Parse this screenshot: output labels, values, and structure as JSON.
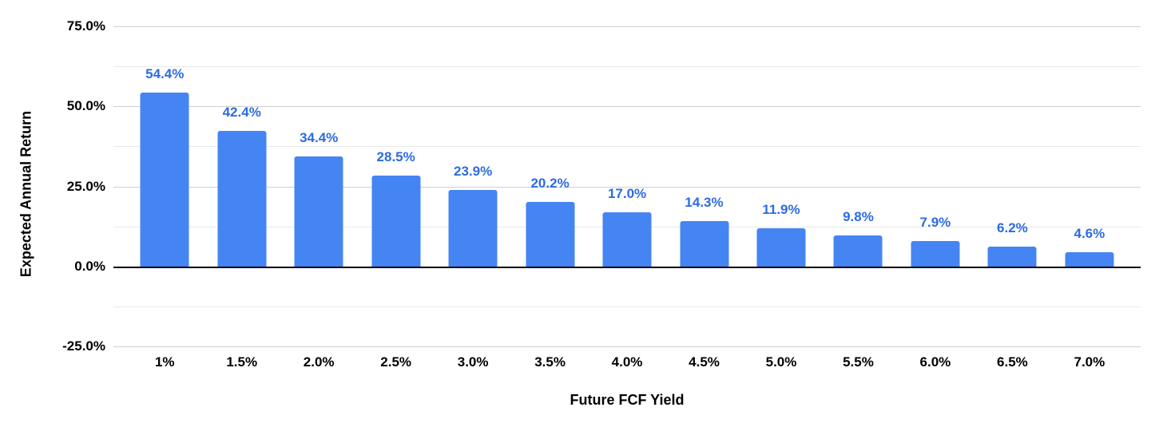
{
  "chart_data": {
    "type": "bar",
    "title": "",
    "categories": [
      "1%",
      "1.5%",
      "2.0%",
      "2.5%",
      "3.0%",
      "3.5%",
      "4.0%",
      "4.5%",
      "5.0%",
      "5.5%",
      "6.0%",
      "6.5%",
      "7.0%"
    ],
    "values": [
      54.4,
      42.4,
      34.4,
      28.5,
      23.9,
      20.2,
      17.0,
      14.3,
      11.9,
      9.8,
      7.9,
      6.2,
      4.6
    ],
    "data_labels": [
      "54.4%",
      "42.4%",
      "34.4%",
      "28.5%",
      "23.9%",
      "20.2%",
      "17.0%",
      "14.3%",
      "11.9%",
      "9.8%",
      "7.9%",
      "6.2%",
      "4.6%"
    ],
    "xlabel": "Future FCF Yield",
    "ylabel": "Expected Annual Return",
    "ylim": [
      -25,
      75
    ],
    "y_ticks": [
      {
        "value": 75,
        "label": "75.0%"
      },
      {
        "value": 50,
        "label": "50.0%"
      },
      {
        "value": 25,
        "label": "25.0%"
      },
      {
        "value": 0,
        "label": "0.0%"
      },
      {
        "value": -25,
        "label": "-25.0%"
      }
    ],
    "y_minor_gridlines": [
      62.5,
      37.5,
      12.5,
      -12.5
    ],
    "grid": true,
    "legend_position": "none",
    "colors": {
      "bar": "#4584F3",
      "data_label": "#2D6BE2",
      "axis_text": "#000000",
      "major_gridline": "#d0d0d0",
      "minor_gridline": "#e9e9e9",
      "zero_line": "#000000",
      "background": "#ffffff"
    }
  }
}
